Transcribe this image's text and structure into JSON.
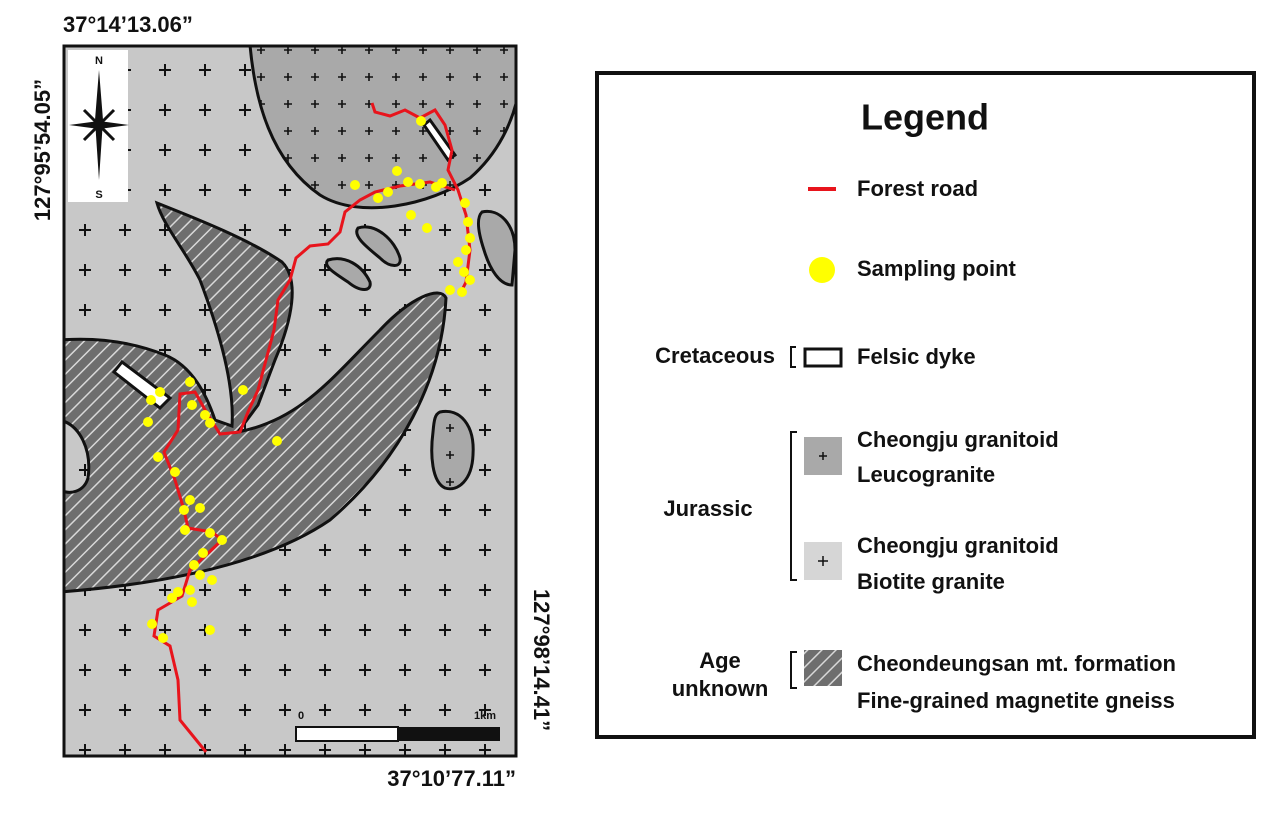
{
  "map": {
    "coordinates": {
      "top_left": "37°14’13.06”",
      "left": "127°95’54.05”",
      "right": "127°98’14.41”",
      "bottom_right": "37°10’77.11”"
    },
    "compass": {
      "north": "N",
      "south": "S"
    },
    "scale_bar": {
      "start": "0",
      "end": "1km"
    }
  },
  "legend": {
    "title": "Legend",
    "symbols": [
      "Forest road",
      "Sampling point"
    ],
    "units": [
      {
        "age": [
          "Cretaceous"
        ],
        "rocks": [
          [
            "Felsic dyke"
          ]
        ]
      },
      {
        "age": [
          "Jurassic"
        ],
        "rocks": [
          [
            "Cheongju granitoid",
            "Leucogranite"
          ],
          [
            "Cheongju granitoid",
            "Biotite granite"
          ]
        ]
      },
      {
        "age": [
          "Age",
          "unknown"
        ],
        "rocks": [
          [
            "Cheondeungsan mt. formation",
            "Fine-grained magnetite gneiss"
          ]
        ]
      }
    ]
  }
}
